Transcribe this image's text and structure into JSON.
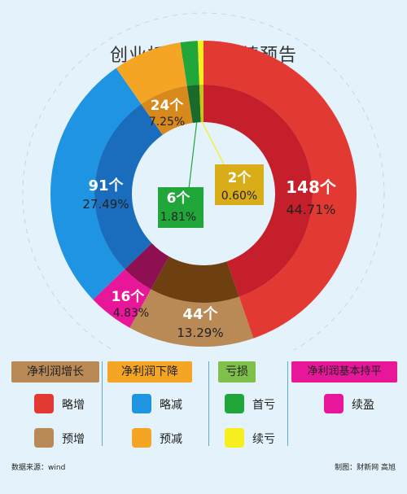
{
  "title": "创业板半年报业绩预告",
  "chart_data": {
    "type": "pie",
    "title": "创业板半年报业绩预告",
    "unit_label": "个",
    "slices": [
      {
        "category": "略增",
        "group": "净利润增长",
        "count": 148,
        "percent": "44.71%",
        "color": "#e23a33",
        "inner_color": "#c41f2a"
      },
      {
        "category": "预增",
        "group": "净利润增长",
        "count": 44,
        "percent": "13.29%",
        "color": "#b98a56",
        "inner_color": "#6e3f10"
      },
      {
        "category": "续盈",
        "group": "净利润基本持平",
        "count": 16,
        "percent": "4.83%",
        "color": "#e8179a",
        "inner_color": "#8e0f52"
      },
      {
        "category": "略减",
        "group": "净利润下降",
        "count": 91,
        "percent": "27.49%",
        "color": "#1e94e2",
        "inner_color": "#1a6dbd"
      },
      {
        "category": "预减",
        "group": "净利润下降",
        "count": 24,
        "percent": "7.25%",
        "color": "#f4a523",
        "inner_color": "#d8891b"
      },
      {
        "category": "首亏",
        "group": "亏损",
        "count": 6,
        "percent": "1.81%",
        "color": "#21a63a",
        "inner_color": "#1a6a2c"
      },
      {
        "category": "续亏",
        "group": "亏损",
        "count": 2,
        "percent": "0.60%",
        "color": "#f6ee1d",
        "inner_color": "#c6c417"
      }
    ]
  },
  "labels": {
    "s148": {
      "count": "148个",
      "percent": "44.71%"
    },
    "s44": {
      "count": "44个",
      "percent": "13.29%"
    },
    "s16": {
      "count": "16个",
      "percent": "4.83%"
    },
    "s91": {
      "count": "91个",
      "percent": "27.49%"
    },
    "s24": {
      "count": "24个",
      "percent": "7.25%"
    },
    "s6": {
      "count": "6个",
      "percent": "1.81%"
    },
    "s2": {
      "count": "2个",
      "percent": "0.60%"
    }
  },
  "legend": {
    "groups": [
      {
        "name": "净利润增长",
        "color": "#b98a56",
        "items": [
          {
            "label": "略增",
            "color": "#e23a33"
          },
          {
            "label": "预增",
            "color": "#b98a56"
          }
        ]
      },
      {
        "name": "净利润下降",
        "color": "#f4a523",
        "items": [
          {
            "label": "略减",
            "color": "#1e94e2"
          },
          {
            "label": "预减",
            "color": "#f4a523"
          }
        ]
      },
      {
        "name": "亏损",
        "color": "#7fc04a",
        "items": [
          {
            "label": "首亏",
            "color": "#21a63a"
          },
          {
            "label": "续亏",
            "color": "#f6ee1d"
          }
        ]
      },
      {
        "name": "净利润基本持平",
        "color": "#e8179a",
        "items": [
          {
            "label": "续盈",
            "color": "#e8179a"
          }
        ]
      }
    ]
  },
  "footer": {
    "source": "数据来源：wind",
    "credit": "制图：财新网 高旭"
  }
}
